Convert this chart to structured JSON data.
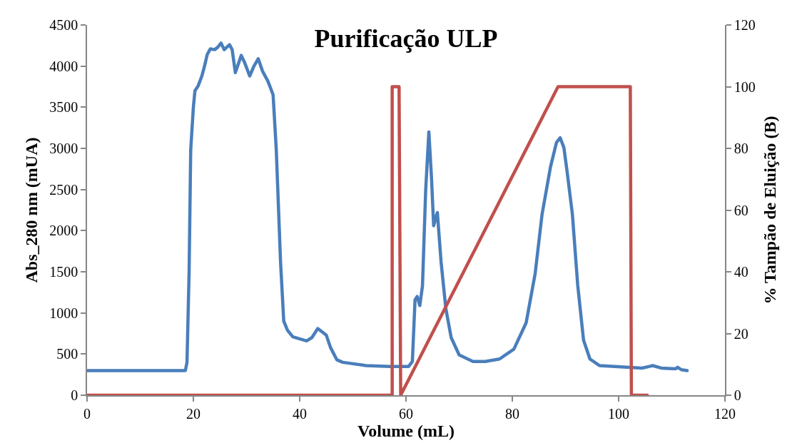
{
  "chart_data": {
    "type": "line",
    "title": "Purificação ULP",
    "xlabel": "Volume (mL)",
    "ylabel": "Abs_280 nm (mUA)",
    "y2label": "% Tampão de Eluição (B)",
    "xlim": [
      0,
      120
    ],
    "xticks": [
      0,
      20,
      40,
      60,
      80,
      100,
      120
    ],
    "ylim": [
      0,
      4500
    ],
    "yticks": [
      0,
      500,
      1000,
      1500,
      2000,
      2500,
      3000,
      3500,
      4000,
      4500
    ],
    "y2lim": [
      0,
      120
    ],
    "y2ticks": [
      0,
      20,
      40,
      60,
      80,
      100,
      120
    ],
    "grid": false,
    "series": [
      {
        "color": "#4a7ebb",
        "x": [
          0,
          18.5,
          18.8,
          19.2,
          19.5,
          20.0,
          20.3,
          20.9,
          21.6,
          22.1,
          22.6,
          23.2,
          24,
          24.6,
          25.2,
          25.8,
          26.8,
          27.3,
          27.9,
          29,
          29.6,
          30.6,
          31.4,
          32.2,
          33,
          34,
          34.6,
          35,
          35.6,
          36.4,
          37,
          37.7,
          38.7,
          41.3,
          42.3,
          43.4,
          45,
          45.8,
          47,
          48.1,
          52.5,
          57,
          60.5,
          61.2,
          61.7,
          62.1,
          62.6,
          63.1,
          63.7,
          64.3,
          64.8,
          65.2,
          65.9,
          66.6,
          67.5,
          68.5,
          70,
          72.6,
          74.9,
          77.6,
          80.3,
          82.6,
          84.3,
          85.6,
          87.2,
          88.3,
          89,
          89.7,
          90.3,
          91.3,
          92.3,
          93.4,
          94.6,
          96.4,
          104.4,
          105.8,
          106.4,
          108,
          110.7,
          111.1,
          111.8,
          112.9
        ],
        "values": [
          300,
          300,
          400,
          1500,
          2980,
          3500,
          3700,
          3760,
          3880,
          4000,
          4140,
          4210,
          4200,
          4230,
          4280,
          4200,
          4260,
          4200,
          3920,
          4130,
          4050,
          3880,
          4000,
          4090,
          3940,
          3820,
          3720,
          3650,
          2980,
          1620,
          900,
          790,
          710,
          660,
          700,
          810,
          730,
          580,
          430,
          400,
          360,
          350,
          350,
          410,
          1160,
          1200,
          1090,
          1330,
          2490,
          3200,
          2640,
          2060,
          2220,
          1620,
          1050,
          700,
          490,
          410,
          410,
          440,
          560,
          880,
          1480,
          2200,
          2780,
          3070,
          3130,
          3010,
          2720,
          2200,
          1340,
          670,
          440,
          360,
          330,
          350,
          360,
          330,
          320,
          340,
          310,
          300
        ]
      },
      {
        "color": "#c0504d",
        "axis": "y2",
        "x": [
          0,
          57.4,
          57.4,
          58.7,
          59.0,
          88.6,
          102.2,
          102.4,
          105.4
        ],
        "values": [
          0,
          0,
          100,
          100,
          0,
          100,
          100,
          0,
          0
        ]
      }
    ]
  }
}
